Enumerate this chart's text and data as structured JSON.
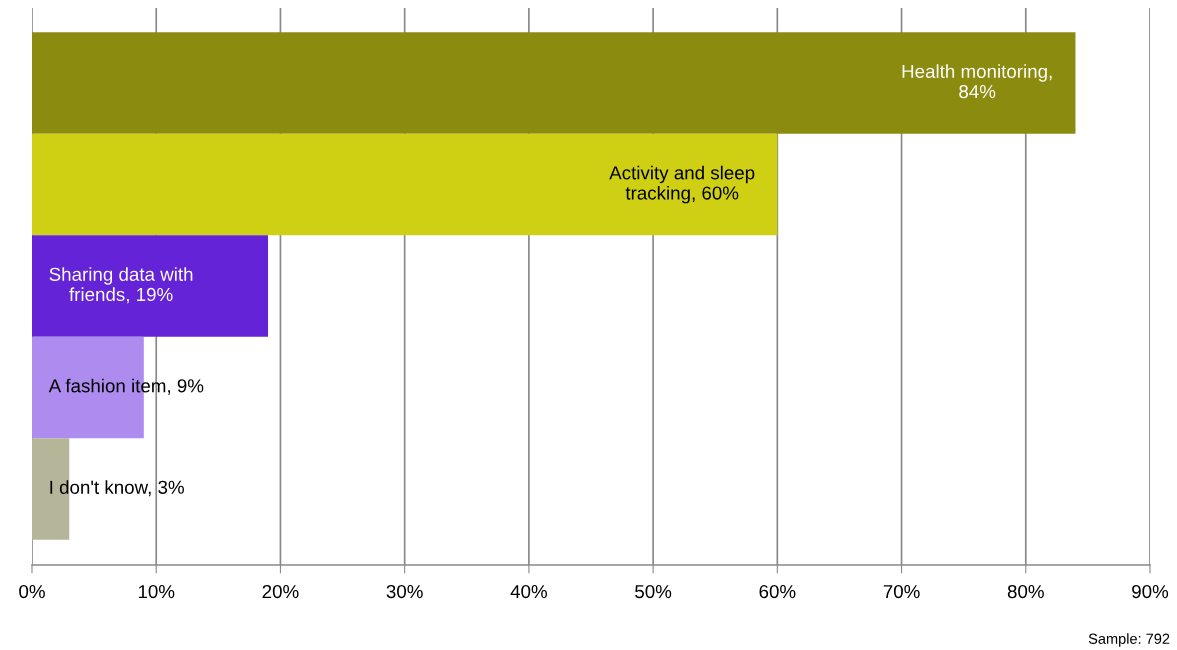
{
  "chart_data": {
    "type": "bar",
    "orientation": "horizontal",
    "categories": [
      null,
      null,
      null,
      null,
      null
    ],
    "values": [
      84,
      60,
      19,
      9,
      3
    ],
    "colors": [
      "#8b8b10",
      "#cfcf14",
      "#6423d6",
      "#ae8bee",
      "#b5b59a"
    ],
    "value_labels": [
      "Health monitoring,\n84%",
      "Activity and sleep\ntracking, 60%",
      "Sharing data with\nfriends, 19%",
      "A fashion item, 9%",
      "I don't know, 3%"
    ],
    "xlim": [
      0,
      90
    ],
    "xticks": [
      {
        "value": 0,
        "label": "0%"
      },
      {
        "value": 10,
        "label": "10%"
      },
      {
        "value": 20,
        "label": "20%"
      },
      {
        "value": 30,
        "label": "30%"
      },
      {
        "value": 40,
        "label": "40%"
      },
      {
        "value": 50,
        "label": "50%"
      },
      {
        "value": 60,
        "label": "60%"
      },
      {
        "value": 70,
        "label": "70%"
      },
      {
        "value": 80,
        "label": "80%"
      },
      {
        "value": 90,
        "label": "90%"
      }
    ],
    "grid": "x",
    "tick_labels": "x",
    "annotations": [
      "Sample: 792"
    ]
  }
}
